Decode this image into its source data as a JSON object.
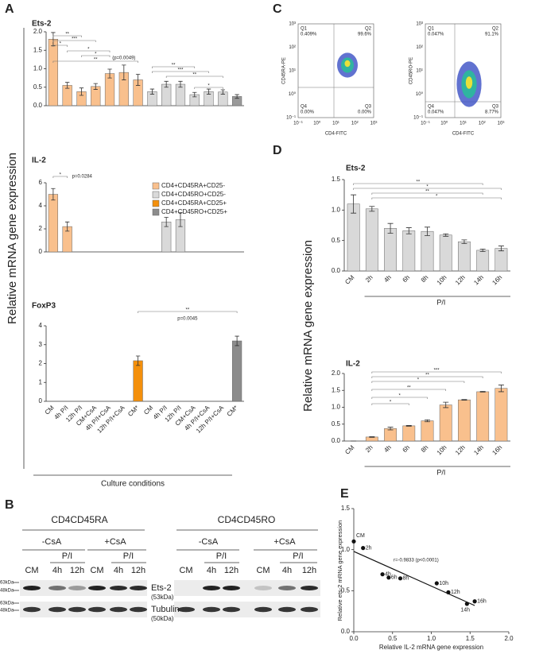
{
  "panel_labels": [
    "A",
    "B",
    "C",
    "D",
    "E"
  ],
  "y_label": "Relative mRNA gene expression",
  "flow": {
    "x_label": "CD4-FITC",
    "decades": [
      "10⁻¹",
      "10⁰",
      "10¹",
      "10²",
      "10³"
    ],
    "plots": [
      {
        "y_label": "CD45RA-PE",
        "quadrants": [
          {
            "name": "Q1",
            "value": "0.409%"
          },
          {
            "name": "Q2",
            "value": "99.6%"
          },
          {
            "name": "Q3",
            "value": "0.00%"
          },
          {
            "name": "Q4",
            "value": "0.00%"
          }
        ]
      },
      {
        "y_label": "CD45RO-PE",
        "quadrants": [
          {
            "name": "Q1",
            "value": "0.047%"
          },
          {
            "name": "Q2",
            "value": "91.1%"
          },
          {
            "name": "Q3",
            "value": "8.77%"
          },
          {
            "name": "Q4",
            "value": "0.047%"
          }
        ]
      }
    ]
  },
  "blot": {
    "groups": [
      {
        "title": "CD4CD45RA",
        "treatments": [
          "-CsA",
          "+CsA"
        ],
        "stim": "P/I",
        "lanes": [
          "CM",
          "4h",
          "12h",
          "CM",
          "4h",
          "12h"
        ]
      },
      {
        "title": "CD4CD45RO",
        "treatments": [
          "-CsA",
          "+CsA"
        ],
        "stim": "P/I",
        "lanes": [
          "CM",
          "4h",
          "12h",
          "CM",
          "4h",
          "12h"
        ]
      }
    ],
    "rows": [
      {
        "name": "Ets-2",
        "size": "(53kDa)"
      },
      {
        "name": "Tubulin",
        "size": "(50kDa)"
      }
    ],
    "markers": [
      "63kDa",
      "48kDa",
      "63kDa",
      "48kDa"
    ]
  },
  "chart_data": [
    {
      "type": "bar",
      "title": "Ets-2",
      "values": [
        1.8,
        0.55,
        0.38,
        0.52,
        0.87,
        0.9,
        0.7,
        0.38,
        0.58,
        0.58,
        0.3,
        0.38,
        0.37,
        0.25
      ],
      "errors": [
        0.18,
        0.08,
        0.1,
        0.08,
        0.12,
        0.2,
        0.15,
        0.07,
        0.08,
        0.08,
        0.06,
        0.07,
        0.06,
        0.05
      ],
      "colors": [
        "#f9c08d",
        "#f9c08d",
        "#f9c08d",
        "#f9c08d",
        "#f9c08d",
        "#f9c08d",
        "#f9c08d",
        "#d9d9d9",
        "#d9d9d9",
        "#d9d9d9",
        "#d9d9d9",
        "#d9d9d9",
        "#d9d9d9",
        "#9a9a9a"
      ],
      "ylim": [
        0,
        2
      ],
      "yticks": [
        {
          "value": 0,
          "label": "0.0"
        },
        0.5,
        {
          "value": 1,
          "label": "1.0"
        },
        1.5,
        {
          "value": 2,
          "label": "2.0"
        }
      ],
      "significance": [
        "**",
        "***",
        "*",
        "*",
        "*",
        "**",
        "**",
        "***",
        "**",
        "*"
      ],
      "annotation": "(p=0.0049)"
    },
    {
      "type": "bar",
      "title": "IL-2",
      "values": [
        5.0,
        2.2,
        null,
        null,
        null,
        null,
        null,
        null,
        2.6,
        2.8,
        null,
        null,
        null,
        null
      ],
      "errors": [
        0.5,
        0.4,
        null,
        null,
        null,
        null,
        null,
        null,
        0.4,
        0.6,
        null,
        null,
        null,
        null
      ],
      "colors": [
        "#f9c08d",
        "#f9c08d",
        "#f9c08d",
        "#f9c08d",
        "#f9c08d",
        "#f9c08d",
        "#f4900c",
        "#d9d9d9",
        "#d9d9d9",
        "#d9d9d9",
        "#d9d9d9",
        "#d9d9d9",
        "#d9d9d9",
        "#8c8c8c"
      ],
      "ylim": [
        0,
        6
      ],
      "yticks": [
        0,
        2,
        4,
        6
      ],
      "significance": [
        "*"
      ],
      "annotation": "p=0.0284",
      "legend": [
        {
          "name": "CD4+CD45RA+CD25-",
          "color": "#f9c08d"
        },
        {
          "name": "CD4+CD45RO+CD25-",
          "color": "#d9d9d9"
        },
        {
          "name": "CD4+CD45RA+CD25+",
          "color": "#f4900c"
        },
        {
          "name": "CD4+CD45RO+CD25+",
          "color": "#8c8c8c"
        }
      ]
    },
    {
      "type": "bar",
      "title": "FoxP3",
      "categories": [
        "CM",
        "4h P/I",
        "12h P/I",
        "CM+CsA",
        "4h P/I+CsA",
        "12h P/I+CsA",
        "CM*",
        "CM",
        "4h P/I",
        "12h P/I",
        "CM+CsA",
        "4h P/I+CsA",
        "12h P/I+CsA",
        "CM*"
      ],
      "values": [
        null,
        null,
        null,
        null,
        null,
        null,
        2.15,
        null,
        null,
        null,
        null,
        null,
        null,
        3.2
      ],
      "errors": [
        null,
        null,
        null,
        null,
        null,
        null,
        0.25,
        null,
        null,
        null,
        null,
        null,
        null,
        0.25
      ],
      "colors": [
        "#f9c08d",
        "#f9c08d",
        "#f9c08d",
        "#f9c08d",
        "#f9c08d",
        "#f9c08d",
        "#f4900c",
        "#d9d9d9",
        "#d9d9d9",
        "#d9d9d9",
        "#d9d9d9",
        "#d9d9d9",
        "#d9d9d9",
        "#8c8c8c"
      ],
      "ylim": [
        0,
        4
      ],
      "yticks": [
        0,
        1,
        2,
        3,
        4
      ],
      "significance": [
        "**"
      ],
      "annotation": "p=0.0045",
      "x_label": "Culture conditions"
    },
    {
      "type": "bar",
      "title": "Ets-2",
      "categories": [
        "CM",
        "2h",
        "4h",
        "6h",
        "8h",
        "10h",
        "12h",
        "14h",
        "16h"
      ],
      "values": [
        1.1,
        1.02,
        0.7,
        0.66,
        0.65,
        0.59,
        0.48,
        0.34,
        0.37
      ],
      "errors": [
        0.15,
        0.04,
        0.08,
        0.05,
        0.07,
        0.02,
        0.03,
        0.02,
        0.04
      ],
      "color": "#d9d9d9",
      "ylim": [
        0,
        1.5
      ],
      "yticks": [
        {
          "value": 0,
          "label": "0.0"
        },
        0.5,
        {
          "value": 1,
          "label": "1.0"
        },
        1.5
      ],
      "significance": [
        "**",
        "*",
        "**",
        "*"
      ],
      "group_label": "P/I"
    },
    {
      "type": "bar",
      "title": "IL-2",
      "categories": [
        "CM",
        "2h",
        "4h",
        "6h",
        "8h",
        "10h",
        "12h",
        "14h",
        "16h"
      ],
      "values": [
        0,
        0.12,
        0.37,
        0.45,
        0.6,
        1.07,
        1.22,
        1.46,
        1.56
      ],
      "errors": [
        0,
        0.01,
        0.04,
        0.01,
        0.03,
        0.08,
        0.01,
        0.01,
        0.1
      ],
      "color": "#f9c08d",
      "ylim": [
        0,
        2
      ],
      "yticks": [
        {
          "value": 0,
          "label": "0.0"
        },
        0.5,
        {
          "value": 1,
          "label": "1.0"
        },
        1.5,
        {
          "value": 2,
          "label": "2.0"
        }
      ],
      "significance": [
        "***",
        "**",
        "*",
        "**",
        "*",
        "*"
      ],
      "group_label": "P/I"
    },
    {
      "type": "scatter",
      "x": [
        0,
        0.12,
        0.37,
        0.45,
        0.6,
        1.07,
        1.22,
        1.46,
        1.56
      ],
      "y": [
        1.1,
        1.02,
        0.7,
        0.66,
        0.65,
        0.59,
        0.48,
        0.34,
        0.37
      ],
      "point_labels": [
        "CM",
        "2h",
        "4h",
        "6h",
        "8h",
        "10h",
        "12h",
        "14h",
        "16h"
      ],
      "xlim": [
        0,
        2
      ],
      "ylim": [
        0,
        1.5
      ],
      "xticks": [
        {
          "value": 0,
          "label": "0.0"
        },
        0.5,
        {
          "value": 1,
          "label": "1.0"
        },
        1.5,
        {
          "value": 2,
          "label": "2.0"
        }
      ],
      "yticks": [
        {
          "value": 0,
          "label": "0.0"
        },
        0.5,
        {
          "value": 1,
          "label": "1.0"
        },
        1.5
      ],
      "x_label": "Relative IL-2 mRNA gene expression",
      "y_label": "Relative ets-2 mRNA gene expression",
      "annotation": "r=-0.9833 (p<0.0001)",
      "color": "#111111"
    }
  ]
}
